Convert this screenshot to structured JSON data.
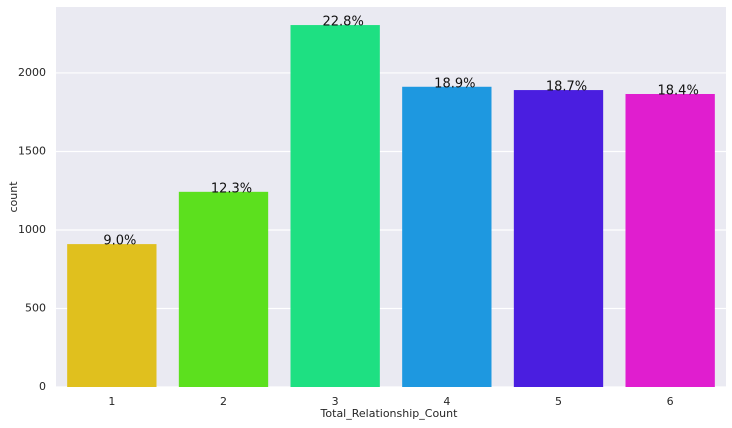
{
  "chart_data": {
    "type": "bar",
    "x_label": "Total_Relationship_Count",
    "y_label": "count",
    "categories": [
      "1",
      "2",
      "3",
      "4",
      "5",
      "6"
    ],
    "values": [
      910,
      1243,
      2305,
      1912,
      1891,
      1866
    ],
    "annotations": [
      "9.0%",
      "12.3%",
      "22.8%",
      "18.9%",
      "18.7%",
      "18.4%"
    ],
    "colors": [
      "#e0c01e",
      "#5ce01e",
      "#1ee082",
      "#1e98e0",
      "#4a1ee0",
      "#e01ecf"
    ],
    "ylim": [
      0,
      2420
    ],
    "yticks": [
      0,
      500,
      1000,
      1500,
      2000
    ],
    "grid": true
  }
}
